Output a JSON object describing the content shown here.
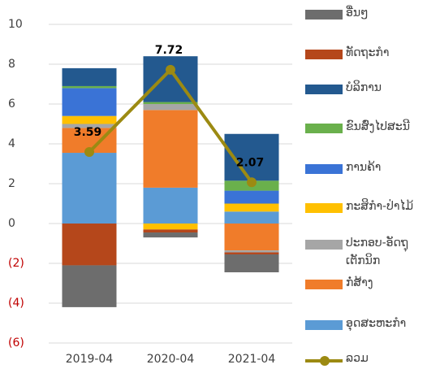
{
  "chart_data": {
    "type": "bar",
    "categories": [
      "2019-04",
      "2020-04",
      "2021-04"
    ],
    "series": [
      {
        "name": "ອື່ນໆ",
        "color": "#6d6d6d",
        "values": [
          -2.1,
          -0.25,
          -0.9
        ]
      },
      {
        "name": "ທັດຖະກຳ",
        "color": "#b5471b",
        "values": [
          -2.1,
          -0.15,
          -0.1
        ]
      },
      {
        "name": "ບໍລິການ",
        "color": "#23598f",
        "values": [
          0.9,
          2.3,
          2.35
        ]
      },
      {
        "name": "ຂົນສົ່ງໄປສະນີ",
        "color": "#6ab04c",
        "values": [
          0.1,
          0.1,
          0.5
        ]
      },
      {
        "name": "ການຄ້າ",
        "color": "#3a73d6",
        "values": [
          1.4,
          0,
          0.65
        ]
      },
      {
        "name": "ກະສິກຳ-ປ່າໄມ້",
        "color": "#ffc000",
        "values": [
          0.4,
          -0.3,
          0.4
        ]
      },
      {
        "name": "ປະກອບ-ອັດຖຸ ເຕັກນິກ",
        "color": "#a6a6a6",
        "values": [
          0.2,
          0.3,
          -0.1
        ]
      },
      {
        "name": "ກໍ່ສ້າງ",
        "color": "#f07c2a",
        "values": [
          1.25,
          3.9,
          -1.35
        ]
      },
      {
        "name": "ອຸດສະຫະກຳ",
        "color": "#5b9bd5",
        "values": [
          3.55,
          1.8,
          0.6
        ]
      },
      {
        "name": "ລວມ",
        "color": "#9c8a12",
        "type": "line",
        "values": [
          3.59,
          7.72,
          2.07
        ]
      }
    ],
    "ylim": [
      -6,
      10
    ],
    "yticks": [
      {
        "value": -6,
        "label": "(6)"
      },
      {
        "value": -4,
        "label": "(4)"
      },
      {
        "value": -2,
        "label": "(2)"
      },
      0,
      2,
      4,
      6,
      8,
      10
    ],
    "negative_tick_color": "#c00000",
    "grid": true
  }
}
